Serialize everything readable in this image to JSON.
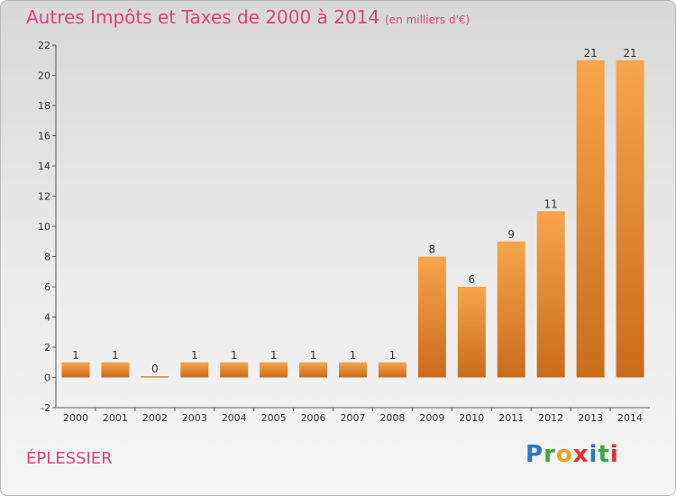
{
  "header": {
    "title": "Autres Impôts et Taxes de 2000 à 2014",
    "subtitle": "(en milliers d'€)"
  },
  "footer": {
    "commune": "ÉPLESSIER",
    "logo_letters": [
      {
        "ch": "P",
        "color": "#2a78c8"
      },
      {
        "ch": "r",
        "color": "#3aa83a"
      },
      {
        "ch": "o",
        "color": "#f0a020"
      },
      {
        "ch": "x",
        "color": "#e03030"
      },
      {
        "ch": "i",
        "color": "#2a78c8"
      },
      {
        "ch": "t",
        "color": "#3aa83a"
      },
      {
        "ch": "i",
        "color": "#e03030"
      }
    ]
  },
  "colors": {
    "bar_light": "#f7a54a",
    "bar_dark": "#c96c1c",
    "title": "#e0407e"
  },
  "chart_data": {
    "type": "bar",
    "categories": [
      "2000",
      "2001",
      "2002",
      "2003",
      "2004",
      "2005",
      "2006",
      "2007",
      "2008",
      "2009",
      "2010",
      "2011",
      "2012",
      "2013",
      "2014"
    ],
    "values": [
      1,
      1,
      0,
      1,
      1,
      1,
      1,
      1,
      1,
      8,
      6,
      9,
      11,
      21,
      21
    ],
    "ylim": [
      -2,
      22
    ],
    "yticks": [
      -2,
      0,
      2,
      4,
      6,
      8,
      10,
      12,
      14,
      16,
      18,
      20,
      22
    ],
    "grid": false,
    "legend": "none"
  }
}
